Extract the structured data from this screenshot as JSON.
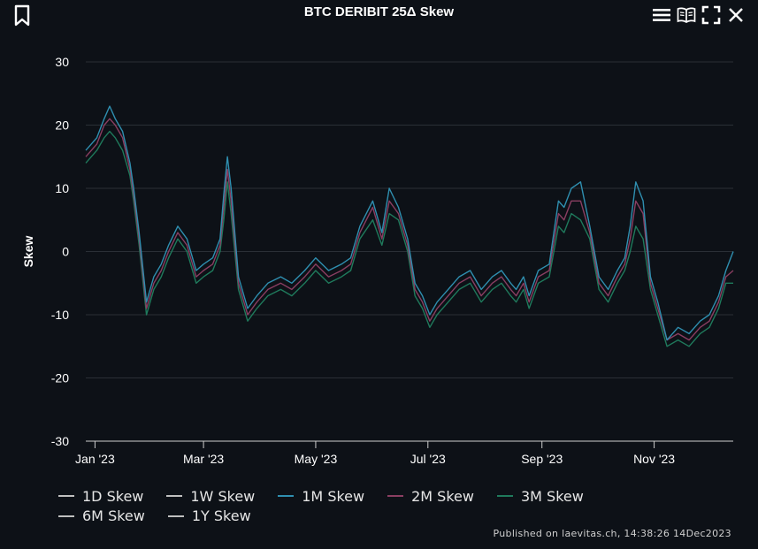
{
  "header": {
    "title": "BTC DERIBIT 25Δ Skew",
    "icons": [
      "bookmark-icon",
      "menu-icon",
      "book-icon",
      "fullscreen-icon",
      "close-icon"
    ]
  },
  "footer": {
    "text": "Published on laevitas.ch, 14:38:26 14Dec2023"
  },
  "colors": {
    "background": "#0d1117",
    "grid": "#2a2f36",
    "1M": "#2f8fb0",
    "2M": "#8a3e62",
    "3M": "#1f7a5c",
    "other": "#bfbfbf"
  },
  "chart_data": {
    "type": "line",
    "title": "BTC DERIBIT 25Δ Skew",
    "xlabel": "",
    "ylabel": "Skew",
    "ylim": [
      -30,
      30
    ],
    "yticks": [
      30,
      20,
      10,
      0,
      -10,
      -20,
      -30
    ],
    "x_range": [
      "2022-12-27",
      "2023-12-14"
    ],
    "xtick_labels": [
      {
        "date": "2023-01-01",
        "label": "Jan '23"
      },
      {
        "date": "2023-03-01",
        "label": "Mar '23"
      },
      {
        "date": "2023-05-01",
        "label": "May '23"
      },
      {
        "date": "2023-07-01",
        "label": "Jul '23"
      },
      {
        "date": "2023-09-01",
        "label": "Sep '23"
      },
      {
        "date": "2023-11-01",
        "label": "Nov '23"
      }
    ],
    "grid": true,
    "legend_position": "bottom",
    "series": [
      {
        "name": "1D Skew",
        "color": "#bfbfbf",
        "visible": false
      },
      {
        "name": "1W Skew",
        "color": "#bfbfbf",
        "visible": false
      },
      {
        "name": "1M Skew",
        "color": "#2f8fb0",
        "visible": true,
        "x": [
          "2022-12-27",
          "2023-01-02",
          "2023-01-06",
          "2023-01-09",
          "2023-01-12",
          "2023-01-16",
          "2023-01-20",
          "2023-01-22",
          "2023-01-25",
          "2023-01-29",
          "2023-02-02",
          "2023-02-06",
          "2023-02-10",
          "2023-02-15",
          "2023-02-20",
          "2023-02-25",
          "2023-03-01",
          "2023-03-06",
          "2023-03-10",
          "2023-03-12",
          "2023-03-14",
          "2023-03-16",
          "2023-03-20",
          "2023-03-25",
          "2023-03-30",
          "2023-04-05",
          "2023-04-12",
          "2023-04-18",
          "2023-04-25",
          "2023-05-01",
          "2023-05-08",
          "2023-05-15",
          "2023-05-20",
          "2023-05-25",
          "2023-06-01",
          "2023-06-06",
          "2023-06-10",
          "2023-06-15",
          "2023-06-20",
          "2023-06-24",
          "2023-06-28",
          "2023-07-02",
          "2023-07-06",
          "2023-07-12",
          "2023-07-18",
          "2023-07-24",
          "2023-07-30",
          "2023-08-05",
          "2023-08-10",
          "2023-08-15",
          "2023-08-18",
          "2023-08-22",
          "2023-08-25",
          "2023-08-30",
          "2023-09-05",
          "2023-09-10",
          "2023-09-13",
          "2023-09-17",
          "2023-09-22",
          "2023-09-27",
          "2023-10-02",
          "2023-10-07",
          "2023-10-12",
          "2023-10-16",
          "2023-10-19",
          "2023-10-22",
          "2023-10-26",
          "2023-10-30",
          "2023-11-03",
          "2023-11-08",
          "2023-11-14",
          "2023-11-20",
          "2023-11-26",
          "2023-12-01",
          "2023-12-06",
          "2023-12-10",
          "2023-12-14"
        ],
        "y": [
          16,
          18,
          21,
          23,
          21,
          19,
          14,
          10,
          3,
          -8,
          -4,
          -2,
          1,
          4,
          2,
          -3,
          -2,
          -1,
          2,
          9,
          15,
          10,
          -4,
          -9,
          -7,
          -5,
          -4,
          -5,
          -3,
          -1,
          -3,
          -2,
          -1,
          4,
          8,
          3,
          10,
          7,
          2,
          -5,
          -7,
          -10,
          -8,
          -6,
          -4,
          -3,
          -6,
          -4,
          -3,
          -5,
          -6,
          -4,
          -7,
          -3,
          -2,
          8,
          7,
          10,
          11,
          4,
          -4,
          -6,
          -3,
          -1,
          4,
          11,
          8,
          -4,
          -8,
          -14,
          -12,
          -13,
          -11,
          -10,
          -7,
          -3,
          0
        ]
      },
      {
        "name": "2M Skew",
        "color": "#8a3e62",
        "visible": true,
        "x": [
          "2022-12-27",
          "2023-01-02",
          "2023-01-06",
          "2023-01-09",
          "2023-01-12",
          "2023-01-16",
          "2023-01-20",
          "2023-01-22",
          "2023-01-25",
          "2023-01-29",
          "2023-02-02",
          "2023-02-06",
          "2023-02-10",
          "2023-02-15",
          "2023-02-20",
          "2023-02-25",
          "2023-03-01",
          "2023-03-06",
          "2023-03-10",
          "2023-03-12",
          "2023-03-14",
          "2023-03-16",
          "2023-03-20",
          "2023-03-25",
          "2023-03-30",
          "2023-04-05",
          "2023-04-12",
          "2023-04-18",
          "2023-04-25",
          "2023-05-01",
          "2023-05-08",
          "2023-05-15",
          "2023-05-20",
          "2023-05-25",
          "2023-06-01",
          "2023-06-06",
          "2023-06-10",
          "2023-06-15",
          "2023-06-20",
          "2023-06-24",
          "2023-06-28",
          "2023-07-02",
          "2023-07-06",
          "2023-07-12",
          "2023-07-18",
          "2023-07-24",
          "2023-07-30",
          "2023-08-05",
          "2023-08-10",
          "2023-08-15",
          "2023-08-18",
          "2023-08-22",
          "2023-08-25",
          "2023-08-30",
          "2023-09-05",
          "2023-09-10",
          "2023-09-13",
          "2023-09-17",
          "2023-09-22",
          "2023-09-27",
          "2023-10-02",
          "2023-10-07",
          "2023-10-12",
          "2023-10-16",
          "2023-10-19",
          "2023-10-22",
          "2023-10-26",
          "2023-10-30",
          "2023-11-03",
          "2023-11-08",
          "2023-11-14",
          "2023-11-20",
          "2023-11-26",
          "2023-12-01",
          "2023-12-06",
          "2023-12-10",
          "2023-12-14"
        ],
        "y": [
          15,
          17,
          20,
          21,
          20,
          18,
          13,
          9,
          2,
          -9,
          -5,
          -3,
          0,
          3,
          1,
          -4,
          -3,
          -2,
          1,
          7,
          13,
          8,
          -5,
          -10,
          -8,
          -6,
          -5,
          -6,
          -4,
          -2,
          -4,
          -3,
          -2,
          3,
          7,
          2,
          8,
          6,
          1,
          -6,
          -8,
          -11,
          -9,
          -7,
          -5,
          -4,
          -7,
          -5,
          -4,
          -6,
          -7,
          -5,
          -8,
          -4,
          -3,
          6,
          5,
          8,
          8,
          3,
          -5,
          -7,
          -4,
          -2,
          2,
          8,
          6,
          -5,
          -9,
          -14,
          -13,
          -14,
          -12,
          -11,
          -8,
          -4,
          -3
        ]
      },
      {
        "name": "3M Skew",
        "color": "#1f7a5c",
        "visible": true,
        "x": [
          "2022-12-27",
          "2023-01-02",
          "2023-01-06",
          "2023-01-09",
          "2023-01-12",
          "2023-01-16",
          "2023-01-20",
          "2023-01-22",
          "2023-01-25",
          "2023-01-29",
          "2023-02-02",
          "2023-02-06",
          "2023-02-10",
          "2023-02-15",
          "2023-02-20",
          "2023-02-25",
          "2023-03-01",
          "2023-03-06",
          "2023-03-10",
          "2023-03-12",
          "2023-03-14",
          "2023-03-16",
          "2023-03-20",
          "2023-03-25",
          "2023-03-30",
          "2023-04-05",
          "2023-04-12",
          "2023-04-18",
          "2023-04-25",
          "2023-05-01",
          "2023-05-08",
          "2023-05-15",
          "2023-05-20",
          "2023-05-25",
          "2023-06-01",
          "2023-06-06",
          "2023-06-10",
          "2023-06-15",
          "2023-06-20",
          "2023-06-24",
          "2023-06-28",
          "2023-07-02",
          "2023-07-06",
          "2023-07-12",
          "2023-07-18",
          "2023-07-24",
          "2023-07-30",
          "2023-08-05",
          "2023-08-10",
          "2023-08-15",
          "2023-08-18",
          "2023-08-22",
          "2023-08-25",
          "2023-08-30",
          "2023-09-05",
          "2023-09-10",
          "2023-09-13",
          "2023-09-17",
          "2023-09-22",
          "2023-09-27",
          "2023-10-02",
          "2023-10-07",
          "2023-10-12",
          "2023-10-16",
          "2023-10-19",
          "2023-10-22",
          "2023-10-26",
          "2023-10-30",
          "2023-11-03",
          "2023-11-08",
          "2023-11-14",
          "2023-11-20",
          "2023-11-26",
          "2023-12-01",
          "2023-12-06",
          "2023-12-10",
          "2023-12-14"
        ],
        "y": [
          14,
          16,
          18,
          19,
          18,
          16,
          12,
          8,
          1,
          -10,
          -6,
          -4,
          -1,
          2,
          0,
          -5,
          -4,
          -3,
          0,
          5,
          11,
          6,
          -6,
          -11,
          -9,
          -7,
          -6,
          -7,
          -5,
          -3,
          -5,
          -4,
          -3,
          2,
          5,
          1,
          6,
          5,
          0,
          -7,
          -9,
          -12,
          -10,
          -8,
          -6,
          -5,
          -8,
          -6,
          -5,
          -7,
          -8,
          -6,
          -9,
          -5,
          -4,
          4,
          3,
          6,
          5,
          2,
          -6,
          -8,
          -5,
          -3,
          0,
          4,
          2,
          -6,
          -10,
          -15,
          -14,
          -15,
          -13,
          -12,
          -9,
          -5,
          -5
        ]
      },
      {
        "name": "6M Skew",
        "color": "#bfbfbf",
        "visible": false
      },
      {
        "name": "1Y Skew",
        "color": "#bfbfbf",
        "visible": false
      }
    ]
  }
}
